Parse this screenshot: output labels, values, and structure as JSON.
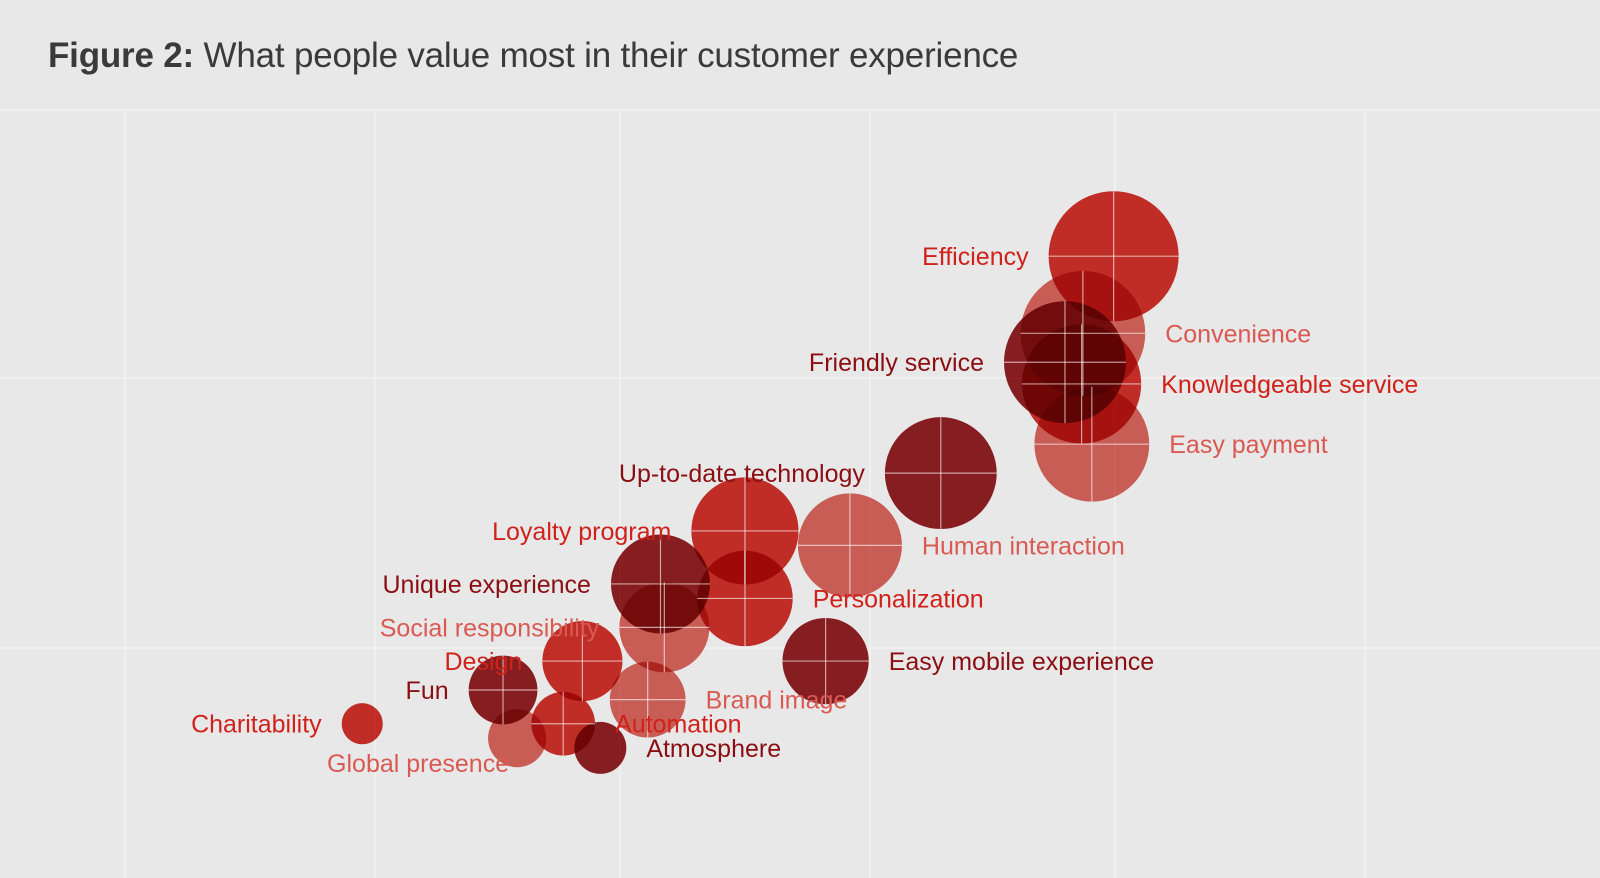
{
  "title": {
    "prefix": "Figure 2:",
    "text": "What people value most in their customer experience"
  },
  "palette": {
    "background": "#e8e8e8",
    "grid": "#f3f3f3",
    "crosshair": "#ffffff",
    "bright": "#d0211b",
    "dark": "#8b0e12",
    "light": "#d95a52"
  },
  "chart_data": {
    "type": "bubble",
    "title": "What people value most in their customer experience",
    "xlabel": "",
    "ylabel": "",
    "xlim": [
      0,
      100
    ],
    "ylim": [
      0,
      100
    ],
    "grid": true,
    "legend": "none",
    "series": [
      {
        "name": "Efficiency",
        "x": 87,
        "y": 90,
        "size": 100,
        "tone": "bright",
        "label_side": "left"
      },
      {
        "name": "Convenience",
        "x": 84.6,
        "y": 74,
        "size": 92,
        "tone": "light",
        "label_side": "right"
      },
      {
        "name": "Friendly service",
        "x": 83.2,
        "y": 68,
        "size": 88,
        "tone": "dark",
        "label_side": "left"
      },
      {
        "name": "Knowledgeable service",
        "x": 84.5,
        "y": 63.5,
        "size": 84,
        "tone": "bright",
        "label_side": "right"
      },
      {
        "name": "Easy payment",
        "x": 85.3,
        "y": 51,
        "size": 78,
        "tone": "light",
        "label_side": "right"
      },
      {
        "name": "Up-to-date technology",
        "x": 73.5,
        "y": 45,
        "size": 74,
        "tone": "dark",
        "label_side": "left"
      },
      {
        "name": "Human interaction",
        "x": 66.4,
        "y": 30,
        "size": 64,
        "tone": "light",
        "label_side": "right"
      },
      {
        "name": "Loyalty program",
        "x": 58.2,
        "y": 33,
        "size": 68,
        "tone": "bright",
        "label_side": "left"
      },
      {
        "name": "Personalization",
        "x": 58.2,
        "y": 19,
        "size": 54,
        "tone": "bright",
        "label_side": "right"
      },
      {
        "name": "Unique experience",
        "x": 51.6,
        "y": 22,
        "size": 58,
        "tone": "dark",
        "label_side": "left"
      },
      {
        "name": "Social responsibility",
        "x": 51.9,
        "y": 13,
        "size": 48,
        "tone": "light",
        "label_side": "left"
      },
      {
        "name": "Design",
        "x": 45.5,
        "y": 6,
        "size": 38,
        "tone": "bright",
        "label_side": "left"
      },
      {
        "name": "Easy mobile experience",
        "x": 64.5,
        "y": 6,
        "size": 44,
        "tone": "dark",
        "label_side": "right"
      },
      {
        "name": "Fun",
        "x": 39.3,
        "y": 0,
        "size": 28,
        "tone": "dark",
        "label_side": "left"
      },
      {
        "name": "Brand image",
        "x": 50.6,
        "y": -2,
        "size": 34,
        "tone": "light",
        "label_side": "right"
      },
      {
        "name": "Charitability",
        "x": 28.3,
        "y": -7,
        "size": 10,
        "tone": "bright",
        "label_side": "left"
      },
      {
        "name": "Automation",
        "x": 44,
        "y": -7,
        "size": 24,
        "tone": "bright",
        "label_side": "right"
      },
      {
        "name": "Global presence",
        "x": 40.4,
        "y": -10,
        "size": 20,
        "tone": "light",
        "label_side": "below-left"
      },
      {
        "name": "Atmosphere",
        "x": 46.9,
        "y": -12,
        "size": 16,
        "tone": "dark",
        "label_side": "right"
      }
    ]
  }
}
